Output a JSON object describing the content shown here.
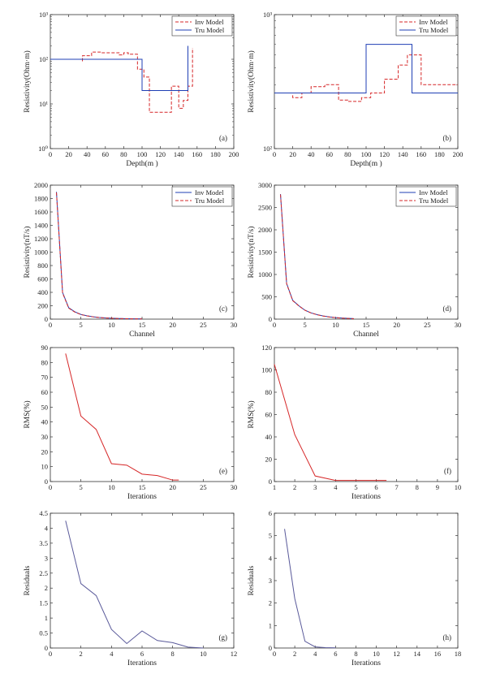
{
  "chart_data": [
    {
      "id": "a",
      "type": "line",
      "panel_label": "(a)",
      "xlabel": "Depth(m )",
      "ylabel": "Resistivity(Ohm·m)",
      "yscale": "log",
      "xlim": [
        0,
        200
      ],
      "ylim": [
        1,
        1000
      ],
      "xticks": [
        0,
        20,
        40,
        60,
        80,
        100,
        120,
        140,
        160,
        180,
        200
      ],
      "xtick_labels": [
        "0",
        "20",
        "40",
        "60",
        "80",
        "100",
        "120",
        "140",
        "160",
        "180",
        "200"
      ],
      "yticks": [
        1,
        10,
        100,
        1000
      ],
      "ytick_labels": [
        "10⁰",
        "10¹",
        "10²",
        "10³"
      ],
      "legend": {
        "position": "top-right"
      },
      "series": [
        {
          "name": "Inv Model",
          "style": "dashed",
          "color": "#d62728",
          "x": [
            35,
            35,
            45,
            45,
            55,
            55,
            75,
            75,
            80,
            80,
            85,
            85,
            95,
            95,
            102,
            102,
            108,
            108,
            132,
            132,
            140,
            140,
            145,
            145,
            150,
            150,
            155,
            155
          ],
          "y": [
            90,
            120,
            120,
            145,
            145,
            140,
            140,
            125,
            125,
            140,
            140,
            130,
            130,
            60,
            60,
            40,
            40,
            6.5,
            6.5,
            25,
            25,
            8,
            8,
            12,
            12,
            25,
            25,
            180
          ]
        },
        {
          "name": "Tru Model",
          "style": "solid",
          "color": "#1f3fb4",
          "x": [
            0,
            100,
            100,
            150,
            150
          ],
          "y": [
            100,
            100,
            20,
            20,
            200
          ]
        }
      ]
    },
    {
      "id": "b",
      "type": "line",
      "panel_label": "(b)",
      "xlabel": "Depth(m )",
      "ylabel": "Resistivity(Ohm·m)",
      "yscale": "log",
      "xlim": [
        0,
        200
      ],
      "ylim": [
        100,
        1000
      ],
      "xticks": [
        0,
        20,
        40,
        60,
        80,
        100,
        120,
        140,
        160,
        180,
        200
      ],
      "xtick_labels": [
        "0",
        "20",
        "40",
        "60",
        "80",
        "100",
        "120",
        "140",
        "160",
        "180",
        "200"
      ],
      "yticks": [
        100,
        1000
      ],
      "ytick_labels": [
        "10²",
        "10³"
      ],
      "legend": {
        "position": "top-right"
      },
      "series": [
        {
          "name": "Inv Model",
          "style": "dashed",
          "color": "#d62728",
          "x": [
            20,
            20,
            30,
            30,
            40,
            40,
            55,
            55,
            70,
            70,
            80,
            80,
            95,
            95,
            105,
            105,
            120,
            120,
            135,
            135,
            145,
            145,
            160,
            160,
            200
          ],
          "y": [
            250,
            240,
            240,
            260,
            260,
            290,
            290,
            300,
            300,
            230,
            230,
            225,
            225,
            240,
            240,
            260,
            260,
            330,
            330,
            420,
            420,
            500,
            500,
            300,
            300
          ]
        },
        {
          "name": "Tru Model",
          "style": "solid",
          "color": "#1f3fb4",
          "x": [
            0,
            100,
            100,
            150,
            150,
            200
          ],
          "y": [
            260,
            260,
            600,
            600,
            260,
            260
          ]
        }
      ]
    },
    {
      "id": "c",
      "type": "line",
      "panel_label": "(c)",
      "xlabel": "Channel",
      "ylabel": "Resistivity(nT/s)",
      "xlim": [
        0,
        30
      ],
      "ylim": [
        0,
        2000
      ],
      "xticks": [
        0,
        5,
        10,
        15,
        20,
        25,
        30
      ],
      "xtick_labels": [
        "0",
        "5",
        "10",
        "15",
        "20",
        "25",
        "30"
      ],
      "yticks": [
        0,
        200,
        400,
        600,
        800,
        1000,
        1200,
        1400,
        1600,
        1800,
        2000
      ],
      "ytick_labels": [
        "0",
        "200",
        "400",
        "600",
        "800",
        "1000",
        "1200",
        "1400",
        "1600",
        "1800",
        "2000"
      ],
      "legend": {
        "position": "top-right"
      },
      "series": [
        {
          "name": "Inv Model",
          "style": "solid",
          "color": "#1f3fb4",
          "x": [
            1,
            2,
            3,
            4,
            5,
            6,
            7,
            8,
            9,
            10,
            11,
            12,
            13,
            14,
            15
          ],
          "y": [
            1900,
            400,
            170,
            110,
            70,
            50,
            35,
            25,
            18,
            14,
            10,
            8,
            6,
            5,
            4
          ]
        },
        {
          "name": "Tru Model",
          "style": "dashed",
          "color": "#d62728",
          "x": [
            1,
            2,
            3,
            4,
            5,
            6,
            7,
            8,
            9,
            10,
            11,
            12,
            13,
            14,
            15
          ],
          "y": [
            1890,
            390,
            165,
            105,
            68,
            48,
            34,
            24,
            17,
            13,
            9,
            7,
            5,
            4,
            3
          ]
        }
      ]
    },
    {
      "id": "d",
      "type": "line",
      "panel_label": "(d)",
      "xlabel": "Channel",
      "ylabel": "Resistivity(nT/s)",
      "xlim": [
        0,
        30
      ],
      "ylim": [
        0,
        3000
      ],
      "xticks": [
        0,
        5,
        10,
        15,
        20,
        25,
        30
      ],
      "xtick_labels": [
        "0",
        "5",
        "10",
        "15",
        "20",
        "25",
        "30"
      ],
      "yticks": [
        0,
        500,
        1000,
        1500,
        2000,
        2500,
        3000
      ],
      "ytick_labels": [
        "0",
        "500",
        "1000",
        "1500",
        "2000",
        "2500",
        "3000"
      ],
      "legend": {
        "position": "top-right"
      },
      "series": [
        {
          "name": "Inv Model",
          "style": "solid",
          "color": "#1f3fb4",
          "x": [
            1,
            2,
            3,
            4,
            5,
            6,
            7,
            8,
            9,
            10,
            11,
            12,
            13
          ],
          "y": [
            2800,
            800,
            420,
            300,
            200,
            140,
            100,
            70,
            50,
            35,
            25,
            18,
            12
          ]
        },
        {
          "name": "Tru Model",
          "style": "dashed",
          "color": "#d62728",
          "x": [
            1,
            2,
            3,
            4,
            5,
            6,
            7,
            8,
            9,
            10,
            11,
            12,
            13
          ],
          "y": [
            2790,
            790,
            415,
            295,
            198,
            138,
            98,
            68,
            48,
            33,
            23,
            16,
            10
          ]
        }
      ]
    },
    {
      "id": "e",
      "type": "line",
      "panel_label": "(e)",
      "xlabel": "Iterations",
      "ylabel": "RMS(%)",
      "xlim": [
        0,
        30
      ],
      "ylim": [
        0,
        90
      ],
      "xticks": [
        0,
        5,
        10,
        15,
        20,
        25,
        30
      ],
      "xtick_labels": [
        "0",
        "5",
        "10",
        "15",
        "20",
        "25",
        "30"
      ],
      "yticks": [
        0,
        10,
        20,
        30,
        40,
        50,
        60,
        70,
        80,
        90
      ],
      "ytick_labels": [
        "0",
        "10",
        "20",
        "30",
        "40",
        "50",
        "60",
        "70",
        "80",
        "90"
      ],
      "series": [
        {
          "style": "solid",
          "color": "#d62728",
          "x": [
            2.5,
            5,
            7.5,
            10,
            12.5,
            15,
            17.5,
            20,
            21
          ],
          "y": [
            86,
            44,
            35,
            12,
            11,
            5,
            4,
            1,
            1
          ]
        }
      ]
    },
    {
      "id": "f",
      "type": "line",
      "panel_label": "(f)",
      "xlabel": "Iterations",
      "ylabel": "RMS(%)",
      "xlim": [
        1,
        10
      ],
      "ylim": [
        0,
        120
      ],
      "xticks": [
        1,
        2,
        3,
        4,
        5,
        6,
        7,
        8,
        9,
        10
      ],
      "xtick_labels": [
        "1",
        "2",
        "3",
        "4",
        "5",
        "6",
        "7",
        "8",
        "9",
        "10"
      ],
      "yticks": [
        0,
        20,
        40,
        60,
        80,
        100,
        120
      ],
      "ytick_labels": [
        "0",
        "20",
        "40",
        "60",
        "80",
        "100",
        "120"
      ],
      "series": [
        {
          "style": "solid",
          "color": "#d62728",
          "x": [
            1,
            2,
            3,
            4,
            5,
            6,
            6.5
          ],
          "y": [
            105,
            42,
            5,
            1,
            1,
            1,
            1
          ]
        }
      ]
    },
    {
      "id": "g",
      "type": "line",
      "panel_label": "(g)",
      "xlabel": "Iterations",
      "ylabel": "Residuals",
      "xlim": [
        0,
        12
      ],
      "ylim": [
        0,
        4.5
      ],
      "xticks": [
        0,
        2,
        4,
        6,
        8,
        10,
        12
      ],
      "xtick_labels": [
        "0",
        "2",
        "4",
        "6",
        "8",
        "10",
        "12"
      ],
      "yticks": [
        0,
        0.5,
        1,
        1.5,
        2,
        2.5,
        3,
        3.5,
        4,
        4.5
      ],
      "ytick_labels": [
        "0",
        "0.5",
        "1",
        "1.5",
        "2",
        "2.5",
        "3",
        "3.5",
        "4",
        "4.5"
      ],
      "series": [
        {
          "style": "solid",
          "color": "#5a5a9a",
          "x": [
            1,
            2,
            3,
            4,
            5,
            6,
            7,
            8,
            9,
            10
          ],
          "y": [
            4.25,
            2.15,
            1.75,
            0.62,
            0.15,
            0.57,
            0.25,
            0.18,
            0.03,
            0.0
          ]
        }
      ]
    },
    {
      "id": "h",
      "type": "line",
      "panel_label": "(h)",
      "xlabel": "Iterations",
      "ylabel": "Residuals",
      "xlim": [
        0,
        18
      ],
      "ylim": [
        0,
        6
      ],
      "xticks": [
        0,
        2,
        4,
        6,
        8,
        10,
        12,
        14,
        16,
        18
      ],
      "xtick_labels": [
        "0",
        "2",
        "4",
        "6",
        "8",
        "10",
        "12",
        "14",
        "16",
        "18"
      ],
      "yticks": [
        0,
        1,
        2,
        3,
        4,
        5,
        6
      ],
      "ytick_labels": [
        "0",
        "1",
        "2",
        "3",
        "4",
        "5",
        "6"
      ],
      "series": [
        {
          "style": "solid",
          "color": "#5a5a9a",
          "x": [
            1,
            2,
            3,
            4,
            5,
            6
          ],
          "y": [
            5.3,
            2.2,
            0.3,
            0.05,
            0.02,
            0.01
          ]
        }
      ]
    }
  ]
}
